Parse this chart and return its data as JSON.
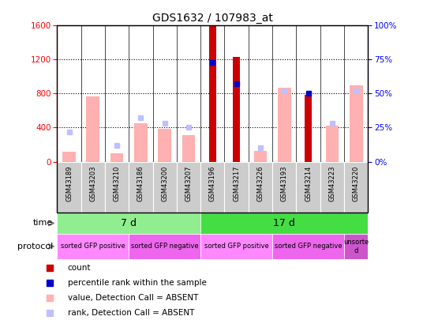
{
  "title": "GDS1632 / 107983_at",
  "samples": [
    "GSM43189",
    "GSM43203",
    "GSM43210",
    "GSM43186",
    "GSM43200",
    "GSM43207",
    "GSM43196",
    "GSM43217",
    "GSM43226",
    "GSM43193",
    "GSM43214",
    "GSM43223",
    "GSM43220"
  ],
  "count_values": [
    null,
    null,
    null,
    null,
    null,
    null,
    1590,
    1230,
    null,
    null,
    790,
    null,
    null
  ],
  "rank_values": [
    null,
    null,
    null,
    null,
    null,
    null,
    73,
    57,
    null,
    null,
    50,
    null,
    null
  ],
  "absent_value": [
    120,
    770,
    100,
    450,
    390,
    310,
    null,
    null,
    130,
    870,
    null,
    420,
    900
  ],
  "absent_rank": [
    22,
    null,
    12,
    32,
    28,
    25,
    null,
    null,
    10,
    52,
    null,
    28,
    52
  ],
  "ylim_left": [
    0,
    1600
  ],
  "ylim_right": [
    0,
    100
  ],
  "yticks_left": [
    0,
    400,
    800,
    1200,
    1600
  ],
  "yticks_right": [
    0,
    25,
    50,
    75,
    100
  ],
  "time_7d_color": "#90EE90",
  "time_17d_color": "#44DD44",
  "proto_pos_color": "#FF88FF",
  "proto_neg_color": "#EE66EE",
  "proto_unsorted_color": "#CC55CC",
  "color_count": "#CC0000",
  "color_rank": "#0000CC",
  "color_absent_value": "#FFB0B0",
  "color_absent_rank": "#C0C0FF",
  "xticklabel_bg": "#CCCCCC",
  "legend_items": [
    {
      "color": "#CC0000",
      "label": "count"
    },
    {
      "color": "#0000CC",
      "label": "percentile rank within the sample"
    },
    {
      "color": "#FFB0B0",
      "label": "value, Detection Call = ABSENT"
    },
    {
      "color": "#C0C0FF",
      "label": "rank, Detection Call = ABSENT"
    }
  ]
}
